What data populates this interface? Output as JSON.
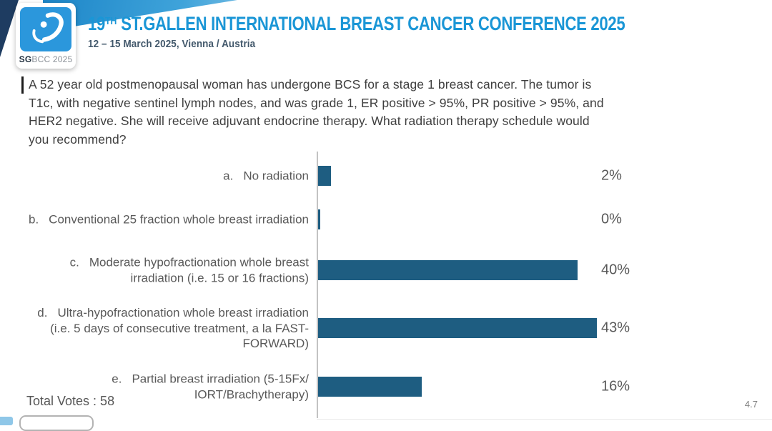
{
  "header": {
    "logo": {
      "sg": "SG",
      "rest": "BCC 2025"
    },
    "title": {
      "num": "19",
      "sup": "TH",
      "rest": " ST.GALLEN INTERNATIONAL BREAST CANCER CONFERENCE 2025"
    },
    "subtitle": "12 – 15 March 2025, Vienna / Austria"
  },
  "question": {
    "lines": [
      "A 52 year old postmenopausal woman has undergone BCS for a stage 1 breast cancer.  The tumor is",
      "T1c, with negative sentinel lymph nodes, and was grade 1, ER positive > 95%, PR positive > 95%, and",
      "HER2 negative.  She will receive adjuvant endocrine therapy. What radiation therapy schedule would",
      "you recommend?"
    ]
  },
  "chart_data": {
    "type": "bar",
    "orientation": "horizontal",
    "categories": [
      {
        "letter": "a.",
        "text": "No radiation"
      },
      {
        "letter": "b.",
        "text": "Conventional 25 fraction whole breast irradiation"
      },
      {
        "letter": "c.",
        "text": "Moderate hypofractionation whole breast irradiation (i.e. 15 or 16 fractions)"
      },
      {
        "letter": "d.",
        "text": "Ultra-hypofractionation whole breast irradiation (i.e. 5 days of consecutive treatment, a la FAST-FORWARD)"
      },
      {
        "letter": "e.",
        "text": "Partial breast irradiation (5-15Fx/ IORT/Brachytherapy)"
      }
    ],
    "values": [
      2,
      0,
      40,
      43,
      16
    ],
    "value_labels": [
      "2%",
      "0%",
      "40%",
      "43%",
      "16%"
    ],
    "bar_color": "#1e5d81",
    "xlim": [
      0,
      43
    ],
    "grid": false,
    "legend": false,
    "total_votes": 58
  },
  "footer": {
    "total_votes_label": "Total Votes : 58",
    "page_number": "4.7"
  }
}
